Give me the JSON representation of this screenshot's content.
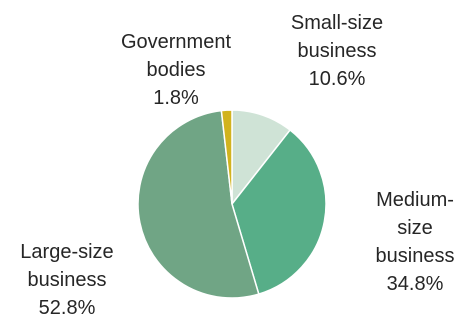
{
  "chart_data": {
    "type": "pie",
    "title": "",
    "slices": [
      {
        "label": [
          "Small-size",
          "business"
        ],
        "value": 10.6,
        "value_label": "10.6%",
        "color": "#cfe3d6"
      },
      {
        "label": [
          "Medium-",
          "size",
          "business"
        ],
        "value": 34.8,
        "value_label": "34.8%",
        "color": "#57ae88"
      },
      {
        "label": [
          "Large-size",
          "business"
        ],
        "value": 52.8,
        "value_label": "52.8%",
        "color": "#70a585"
      },
      {
        "label": [
          "Government",
          "bodies"
        ],
        "value": 1.8,
        "value_label": "1.8%",
        "color": "#d1b31e"
      }
    ],
    "start_angle_deg": 0,
    "direction": "clockwise"
  }
}
